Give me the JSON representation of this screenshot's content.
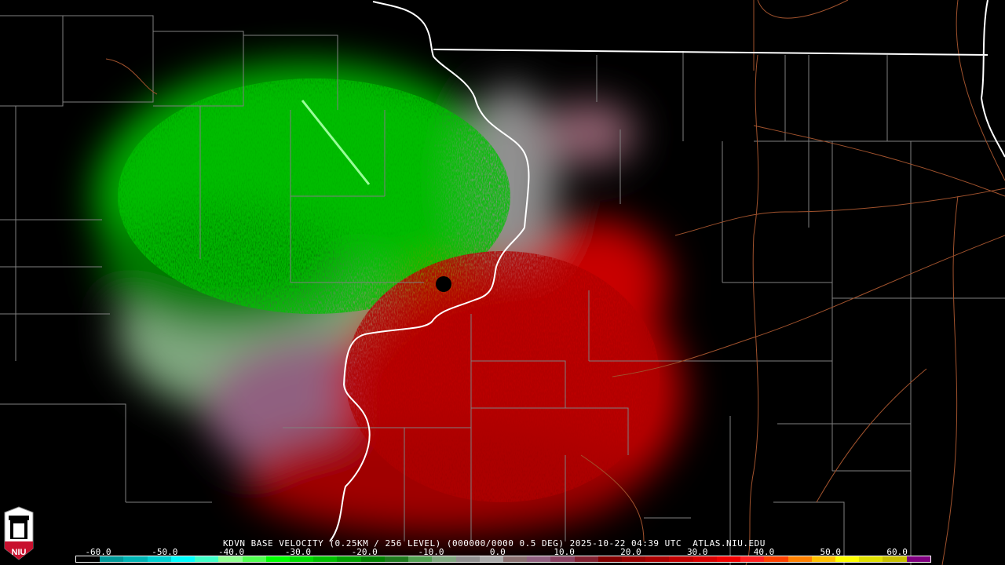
{
  "product": {
    "title": "KDVN BASE VELOCITY (0.25KM / 256 LEVEL) (000000/0000 0.5 DEG) 2025-10-22 04:39 UTC  ATLAS.NIU.EDU",
    "station": "KDVN",
    "elevation_deg": "0.5",
    "timestamp": "2025-10-22 04:39 UTC",
    "source": "ATLAS.NIU.EDU"
  },
  "logo": {
    "text": "NIU",
    "color": "#c8102e"
  },
  "legend": {
    "ticks": [
      "-60.0",
      "-50.0",
      "-40.0",
      "-30.0",
      "-20.0",
      "-10.0",
      "0.0",
      "10.0",
      "20.0",
      "30.0",
      "40.0",
      "50.0",
      "60.0"
    ],
    "colors": [
      "#000000",
      "#009a9a",
      "#00b4b4",
      "#00d2d2",
      "#00ffff",
      "#40ffc8",
      "#90ff90",
      "#50ff50",
      "#00ff00",
      "#00dd00",
      "#00c000",
      "#00a000",
      "#008000",
      "#1e7a1e",
      "#50a050",
      "#80a880",
      "#909090",
      "#aaaaaa",
      "#8a7070",
      "#906080",
      "#884060",
      "#802030",
      "#800000",
      "#960000",
      "#aa0000",
      "#c00000",
      "#d80000",
      "#f00000",
      "#ff2020",
      "#ff4000",
      "#ff8000",
      "#ffc000",
      "#ffff00",
      "#e0e000",
      "#c8c000",
      "#800080"
    ]
  },
  "colors": {
    "outbound": "#c00000",
    "inbound": "#00c000",
    "state_border": "#ffffff",
    "county_border": "#808080",
    "highway": "#a0522d"
  }
}
